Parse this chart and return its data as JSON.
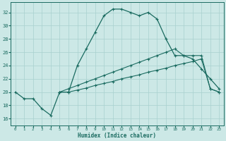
{
  "xlabel": "Humidex (Indice chaleur)",
  "bg_color": "#cce8e6",
  "grid_color": "#a8d0ce",
  "line_color": "#1a6b60",
  "xlim": [
    -0.5,
    23.5
  ],
  "ylim": [
    15.0,
    33.5
  ],
  "x_ticks": [
    0,
    1,
    2,
    3,
    4,
    5,
    6,
    7,
    8,
    9,
    10,
    11,
    12,
    13,
    14,
    15,
    16,
    17,
    18,
    19,
    20,
    21,
    22,
    23
  ],
  "y_ticks": [
    16,
    18,
    20,
    22,
    24,
    26,
    28,
    30,
    32
  ],
  "main_x": [
    0,
    1,
    2,
    3,
    4,
    5,
    6,
    7,
    8,
    9,
    10,
    11,
    12,
    13,
    14,
    15,
    16,
    17,
    18,
    19,
    20,
    21,
    22,
    23
  ],
  "main_y": [
    20.0,
    19.0,
    19.0,
    17.5,
    16.5,
    20.0,
    20.0,
    24.0,
    26.5,
    29.0,
    31.5,
    32.5,
    32.5,
    32.0,
    31.5,
    32.0,
    31.0,
    28.0,
    25.5,
    25.5,
    25.0,
    23.5,
    22.0,
    20.5
  ],
  "low_x": [
    5,
    6,
    7,
    8,
    9,
    10,
    11,
    12,
    13,
    14,
    15,
    16,
    17,
    18,
    19,
    20,
    21,
    22,
    23
  ],
  "low_y": [
    20.0,
    20.0,
    20.3,
    20.6,
    21.0,
    21.3,
    21.6,
    22.0,
    22.3,
    22.6,
    23.0,
    23.3,
    23.6,
    24.0,
    24.3,
    24.6,
    25.0,
    20.5,
    20.0
  ],
  "high_x": [
    5,
    6,
    7,
    8,
    9,
    10,
    11,
    12,
    13,
    14,
    15,
    16,
    17,
    18,
    19,
    20,
    21,
    22,
    23
  ],
  "high_y": [
    20.0,
    20.5,
    21.0,
    21.5,
    22.0,
    22.5,
    23.0,
    23.5,
    24.0,
    24.5,
    25.0,
    25.5,
    26.0,
    26.5,
    25.5,
    25.5,
    25.5,
    20.5,
    20.0
  ]
}
